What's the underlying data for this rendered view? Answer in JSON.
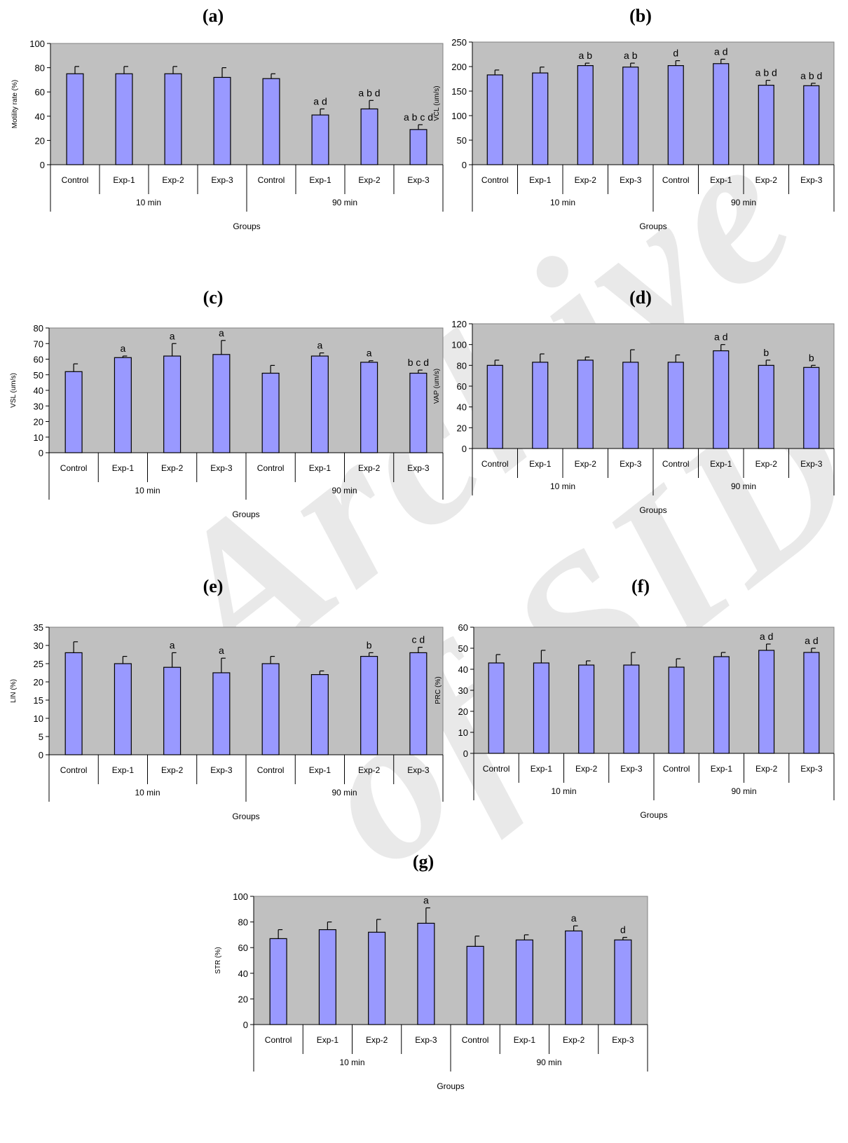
{
  "watermark": "Archive of SID",
  "chart_data": [
    {
      "type": "bar",
      "panel": "(a)",
      "ylabel": "Motility rate (%)",
      "xlabel": "Groups",
      "ylim": [
        0,
        100
      ],
      "yticks": [
        0,
        20,
        40,
        60,
        80,
        100
      ],
      "categories": [
        "Control",
        "Exp-1",
        "Exp-2",
        "Exp-3",
        "Control",
        "Exp-1",
        "Exp-2",
        "Exp-3"
      ],
      "groups": [
        "10 min",
        "90 min"
      ],
      "values": [
        75,
        75,
        75,
        72,
        71,
        41,
        46,
        29
      ],
      "errors": [
        6,
        6,
        6,
        8,
        4,
        5,
        7,
        4
      ],
      "annotations": [
        "",
        "",
        "",
        "",
        "",
        "a d",
        "a b d",
        "a b c d"
      ],
      "grid": false,
      "plot_bg": "#c0c0c0",
      "bar_color": "#9999ff"
    },
    {
      "type": "bar",
      "panel": "(b)",
      "ylabel": "VCL (um/s)",
      "xlabel": "Groups",
      "ylim": [
        0,
        250
      ],
      "yticks": [
        0,
        50,
        100,
        150,
        200,
        250
      ],
      "categories": [
        "Control",
        "Exp-1",
        "Exp-2",
        "Exp-3",
        "Control",
        "Exp-1",
        "Exp-2",
        "Exp-3"
      ],
      "groups": [
        "10 min",
        "90 min"
      ],
      "values": [
        183,
        187,
        202,
        199,
        202,
        206,
        162,
        161
      ],
      "errors": [
        10,
        12,
        5,
        8,
        10,
        9,
        10,
        5
      ],
      "annotations": [
        "",
        "",
        "a b",
        "a b",
        "d",
        "a d",
        "a b d",
        "a b d"
      ],
      "grid": false,
      "plot_bg": "#c0c0c0",
      "bar_color": "#9999ff"
    },
    {
      "type": "bar",
      "panel": "(c)",
      "ylabel": "VSL (um/s)",
      "xlabel": "Groups",
      "ylim": [
        0,
        80
      ],
      "yticks": [
        0,
        10,
        20,
        30,
        40,
        50,
        60,
        70,
        80
      ],
      "categories": [
        "Control",
        "Exp-1",
        "Exp-2",
        "Exp-3",
        "Control",
        "Exp-1",
        "Exp-2",
        "Exp-3"
      ],
      "groups": [
        "10 min",
        "90 min"
      ],
      "values": [
        52,
        61,
        62,
        63,
        51,
        62,
        58,
        51
      ],
      "errors": [
        5,
        1,
        8,
        9,
        5,
        2,
        1,
        2
      ],
      "annotations": [
        "",
        "a",
        "a",
        "a",
        "",
        "a",
        "a",
        "b c d"
      ],
      "grid": false,
      "plot_bg": "#c0c0c0",
      "bar_color": "#9999ff"
    },
    {
      "type": "bar",
      "panel": "(d)",
      "ylabel": "VAP (um/s)",
      "xlabel": "Groups",
      "ylim": [
        0,
        120
      ],
      "yticks": [
        0,
        20,
        40,
        60,
        80,
        100,
        120
      ],
      "categories": [
        "Control",
        "Exp-1",
        "Exp-2",
        "Exp-3",
        "Control",
        "Exp-1",
        "Exp-2",
        "Exp-3"
      ],
      "groups": [
        "10 min",
        "90 min"
      ],
      "values": [
        80,
        83,
        85,
        83,
        83,
        94,
        80,
        78
      ],
      "errors": [
        5,
        8,
        3,
        12,
        7,
        6,
        5,
        2
      ],
      "annotations": [
        "",
        "",
        "",
        "",
        "",
        "a d",
        "b",
        "b"
      ],
      "grid": false,
      "plot_bg": "#c0c0c0",
      "bar_color": "#9999ff"
    },
    {
      "type": "bar",
      "panel": "(e)",
      "ylabel": "LIN (%)",
      "xlabel": "Groups",
      "ylim": [
        0,
        35
      ],
      "yticks": [
        0,
        5,
        10,
        15,
        20,
        25,
        30,
        35
      ],
      "categories": [
        "Control",
        "Exp-1",
        "Exp-2",
        "Exp-3",
        "Control",
        "Exp-1",
        "Exp-2",
        "Exp-3"
      ],
      "groups": [
        "10 min",
        "90 min"
      ],
      "values": [
        28,
        25,
        24,
        22.5,
        25,
        22,
        27,
        28
      ],
      "errors": [
        3,
        2,
        4,
        4,
        2,
        1,
        1,
        1.5
      ],
      "annotations": [
        "",
        "",
        "a",
        "a",
        "",
        "",
        "b",
        "c d"
      ],
      "grid": false,
      "plot_bg": "#c0c0c0",
      "bar_color": "#9999ff"
    },
    {
      "type": "bar",
      "panel": "(f)",
      "ylabel": "PRC (%)",
      "xlabel": "Groups",
      "ylim": [
        0,
        60
      ],
      "yticks": [
        0,
        10,
        20,
        30,
        40,
        50,
        60
      ],
      "categories": [
        "Control",
        "Exp-1",
        "Exp-2",
        "Exp-3",
        "Control",
        "Exp-1",
        "Exp-2",
        "Exp-3"
      ],
      "groups": [
        "10 min",
        "90 min"
      ],
      "values": [
        43,
        43,
        42,
        42,
        41,
        46,
        49,
        48
      ],
      "errors": [
        4,
        6,
        2,
        6,
        4,
        2,
        3,
        2
      ],
      "annotations": [
        "",
        "",
        "",
        "",
        "",
        "",
        "a d",
        "a d"
      ],
      "grid": false,
      "plot_bg": "#c0c0c0",
      "bar_color": "#9999ff"
    },
    {
      "type": "bar",
      "panel": "(g)",
      "ylabel": "STR (%)",
      "xlabel": "Groups",
      "ylim": [
        0,
        100
      ],
      "yticks": [
        0,
        20,
        40,
        60,
        80,
        100
      ],
      "categories": [
        "Control",
        "Exp-1",
        "Exp-2",
        "Exp-3",
        "Control",
        "Exp-1",
        "Exp-2",
        "Exp-3"
      ],
      "groups": [
        "10 min",
        "90 min"
      ],
      "values": [
        67,
        74,
        72,
        79,
        61,
        66,
        73,
        66
      ],
      "errors": [
        7,
        6,
        10,
        12,
        8,
        4,
        4,
        2
      ],
      "annotations": [
        "",
        "",
        "",
        "a",
        "",
        "",
        "a",
        "d"
      ],
      "grid": false,
      "plot_bg": "#c0c0c0",
      "bar_color": "#9999ff"
    }
  ]
}
